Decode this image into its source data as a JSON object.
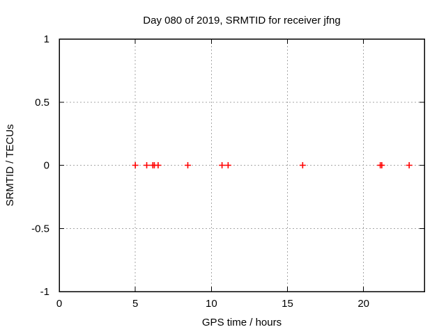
{
  "window": {
    "background_color": "#ffffff"
  },
  "chart_data": {
    "type": "scatter",
    "title": "Day 080 of 2019, SRMTID for receiver jfng",
    "xlabel": "GPS time / hours",
    "ylabel": "SRMTID / TECUs",
    "xlim": [
      0,
      24
    ],
    "ylim": [
      -1,
      1
    ],
    "xticks": [
      0,
      5,
      10,
      15,
      20
    ],
    "xtick_labels": [
      "0",
      "5",
      "10",
      "15",
      "20"
    ],
    "yticks": [
      1,
      0.5,
      0,
      -0.5,
      -1
    ],
    "ytick_labels": [
      "1",
      "0.5",
      "0",
      "-0.5",
      "-1"
    ],
    "grid": true,
    "grid_style": "dashed",
    "grid_color": "#a6a6a6",
    "border_color": "#000000",
    "legend_position": "none",
    "marker": "plus",
    "marker_color": "#ff0000",
    "marker_size": 9,
    "series": [
      {
        "name": "SRMTID",
        "x": [
          5.0,
          5.75,
          6.15,
          6.25,
          6.5,
          8.45,
          10.7,
          11.1,
          16.0,
          21.1,
          21.2,
          23.0
        ],
        "y": [
          0,
          0,
          0,
          0,
          0,
          0,
          0,
          0,
          0,
          0,
          0,
          0
        ]
      }
    ]
  }
}
